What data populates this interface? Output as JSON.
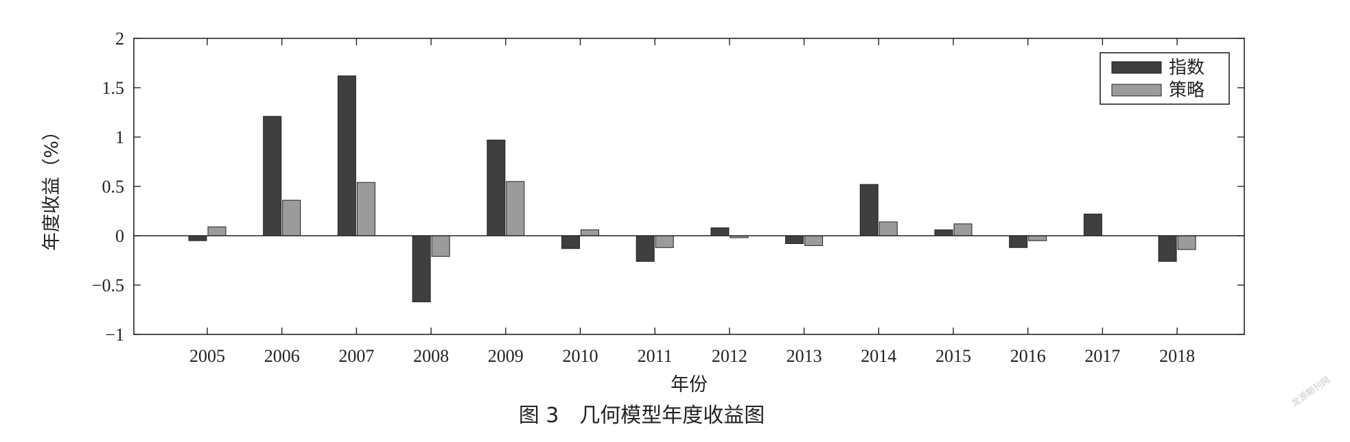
{
  "chart_data": {
    "type": "bar",
    "categories": [
      "2005",
      "2006",
      "2007",
      "2008",
      "2009",
      "2010",
      "2011",
      "2012",
      "2013",
      "2014",
      "2015",
      "2016",
      "2017",
      "2018"
    ],
    "series": [
      {
        "name": "指数",
        "color": "#3f3f3f",
        "values": [
          -0.05,
          1.21,
          1.62,
          -0.67,
          0.97,
          -0.13,
          -0.26,
          0.08,
          -0.08,
          0.52,
          0.06,
          -0.12,
          0.22,
          -0.26
        ]
      },
      {
        "name": "策略",
        "color": "#9b9b9b",
        "values": [
          0.09,
          0.36,
          0.54,
          -0.21,
          0.55,
          0.06,
          -0.12,
          -0.02,
          -0.1,
          0.14,
          0.12,
          -0.05,
          0.0,
          -0.14
        ]
      }
    ],
    "xlabel": "年份",
    "ylabel": "年度收益（%）",
    "ylim": [
      -1,
      2
    ],
    "yticks": [
      -1,
      -0.5,
      0,
      0.5,
      1,
      1.5,
      2
    ],
    "ytick_labels": [
      "−1",
      "−0.5",
      "0",
      "0.5",
      "1",
      "1.5",
      "2"
    ],
    "grid": false,
    "legend_position": "top-right"
  },
  "caption": "图 3　几何模型年度收益图",
  "watermark": "龙源期刊网"
}
